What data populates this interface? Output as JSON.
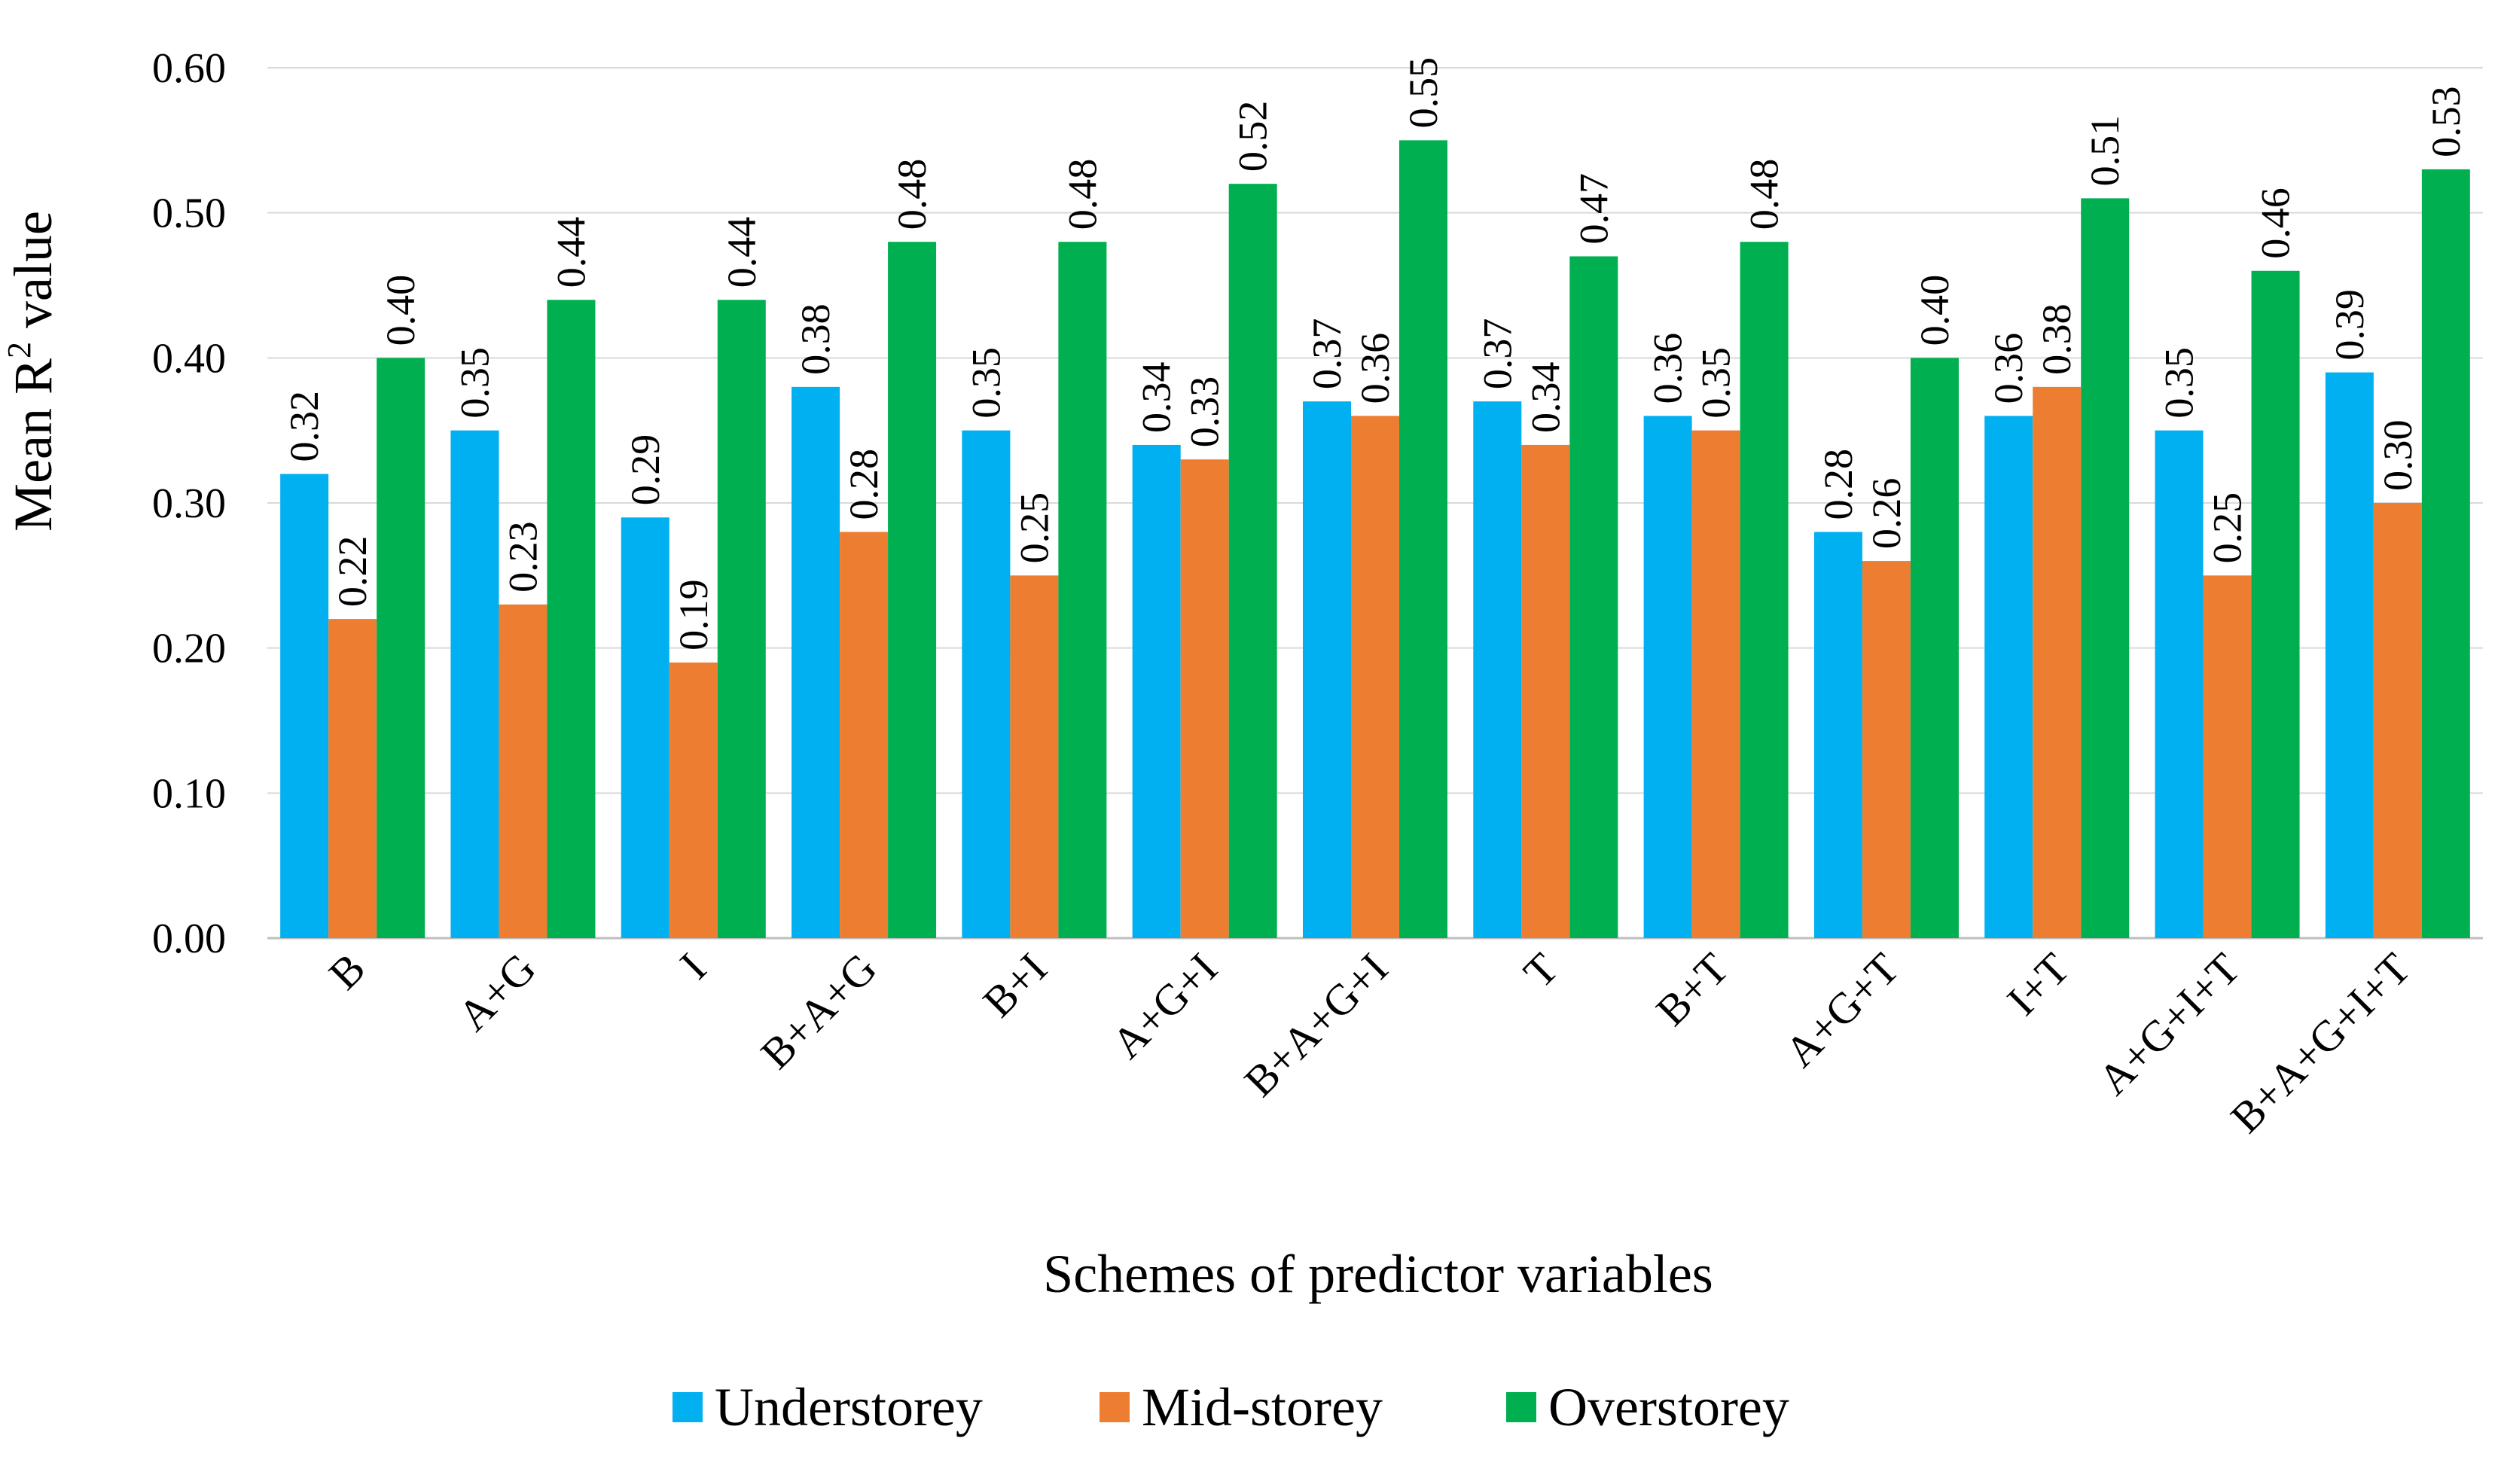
{
  "chart_data": {
    "type": "bar",
    "title": "",
    "xlabel": "Schemes of predictor variables",
    "ylabel_main": "Mean R",
    "ylabel_sup": "2",
    "ylabel_tail": " value",
    "ylim": [
      0,
      0.6
    ],
    "ytick_values": [
      0,
      0.1,
      0.2,
      0.3,
      0.4,
      0.5,
      0.6
    ],
    "ytick_labels": [
      "0.00",
      "0.10",
      "0.20",
      "0.30",
      "0.40",
      "0.50",
      "0.60"
    ],
    "grid": true,
    "legend_position": "bottom",
    "categories": [
      "B",
      "A+G",
      "I",
      "B+A+G",
      "B+I",
      "A+G+I",
      "B+A+G+I",
      "T",
      "B+T",
      "A+G+T",
      "I+T",
      "A+G+I+T",
      "B+A+G+I+T"
    ],
    "series": [
      {
        "name": "Understorey",
        "color": "#00B0F0",
        "values": [
          0.32,
          0.35,
          0.29,
          0.38,
          0.35,
          0.34,
          0.37,
          0.37,
          0.36,
          0.28,
          0.36,
          0.35,
          0.39
        ],
        "labels": [
          "0.32",
          "0.35",
          "0.29",
          "0.38",
          "0.35",
          "0.34",
          "0.37",
          "0.37",
          "0.36",
          "0.28",
          "0.36",
          "0.35",
          "0.39"
        ]
      },
      {
        "name": "Mid-storey",
        "color": "#ED7D31",
        "values": [
          0.22,
          0.23,
          0.19,
          0.28,
          0.25,
          0.33,
          0.36,
          0.34,
          0.35,
          0.26,
          0.38,
          0.25,
          0.3
        ],
        "labels": [
          "0.22",
          "0.23",
          "0.19",
          "0.28",
          "0.25",
          "0.33",
          "0.36",
          "0.34",
          "0.35",
          "0.26",
          "0.38",
          "0.25",
          "0.30"
        ]
      },
      {
        "name": "Overstorey",
        "color": "#00B050",
        "values": [
          0.4,
          0.44,
          0.44,
          0.48,
          0.48,
          0.52,
          0.55,
          0.47,
          0.48,
          0.4,
          0.51,
          0.46,
          0.53
        ],
        "labels": [
          "0.40",
          "0.44",
          "0.44",
          "0.48",
          "0.48",
          "0.52",
          "0.55",
          "0.47",
          "0.48",
          "0.40",
          "0.51",
          "0.46",
          "0.53"
        ]
      }
    ]
  }
}
